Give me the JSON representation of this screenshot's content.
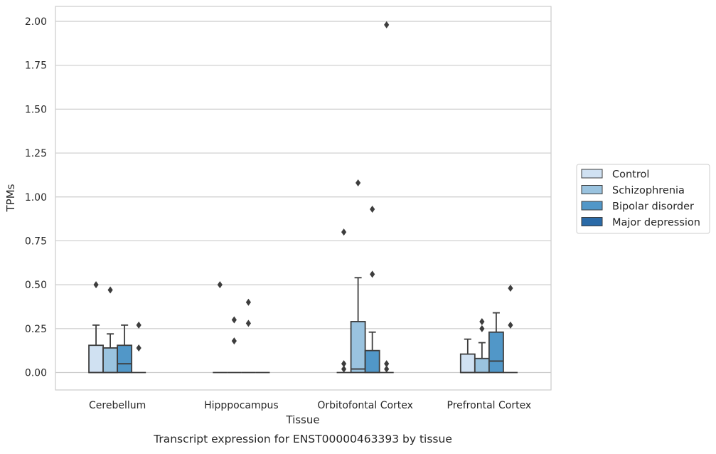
{
  "chart_data": {
    "type": "box",
    "title": "Transcript expression for ENST00000463393 by tissue",
    "xlabel": "Tissue",
    "ylabel": "TPMs",
    "ylim": [
      -0.1,
      2.08
    ],
    "yticks": [
      "0.00",
      "0.25",
      "0.50",
      "0.75",
      "1.00",
      "1.25",
      "1.50",
      "1.75",
      "2.00"
    ],
    "grid": "horizontal",
    "legend_position": "right",
    "categories": [
      "Cerebellum",
      "Hipppocampus",
      "Orbitofontal Cortex",
      "Prefrontal Cortex"
    ],
    "series": [
      {
        "name": "Control",
        "color": "#d0e1f2",
        "boxes": [
          {
            "q1": 0,
            "median": 0,
            "q3": 0.155,
            "whisker_low": 0,
            "whisker_high": 0.27,
            "outliers": [
              0.5
            ]
          },
          {
            "q1": 0,
            "median": 0,
            "q3": 0,
            "whisker_low": 0,
            "whisker_high": 0,
            "outliers": [
              0.5
            ]
          },
          {
            "q1": 0,
            "median": 0,
            "q3": 0,
            "whisker_low": 0,
            "whisker_high": 0,
            "outliers": [
              0.8,
              0.05,
              0.02
            ]
          },
          {
            "q1": 0,
            "median": 0,
            "q3": 0.105,
            "whisker_low": 0,
            "whisker_high": 0.19,
            "outliers": []
          }
        ]
      },
      {
        "name": "Schizophrenia",
        "color": "#9ac3df",
        "boxes": [
          {
            "q1": 0,
            "median": 0,
            "q3": 0.14,
            "whisker_low": 0,
            "whisker_high": 0.22,
            "outliers": [
              0.47
            ]
          },
          {
            "q1": 0,
            "median": 0,
            "q3": 0,
            "whisker_low": 0,
            "whisker_high": 0,
            "outliers": [
              0.3,
              0.18
            ]
          },
          {
            "q1": 0,
            "median": 0.02,
            "q3": 0.29,
            "whisker_low": 0,
            "whisker_high": 0.54,
            "outliers": [
              1.08
            ]
          },
          {
            "q1": 0,
            "median": 0,
            "q3": 0.08,
            "whisker_low": 0,
            "whisker_high": 0.17,
            "outliers": [
              0.29,
              0.25
            ]
          }
        ]
      },
      {
        "name": "Bipolar disorder",
        "color": "#5197c8",
        "boxes": [
          {
            "q1": 0,
            "median": 0.05,
            "q3": 0.155,
            "whisker_low": 0,
            "whisker_high": 0.27,
            "outliers": []
          },
          {
            "q1": 0,
            "median": 0,
            "q3": 0,
            "whisker_low": 0,
            "whisker_high": 0,
            "outliers": [
              0.4,
              0.28
            ]
          },
          {
            "q1": 0,
            "median": 0,
            "q3": 0.125,
            "whisker_low": 0,
            "whisker_high": 0.23,
            "outliers": [
              0.93,
              0.56
            ]
          },
          {
            "q1": 0,
            "median": 0.065,
            "q3": 0.23,
            "whisker_low": 0,
            "whisker_high": 0.34,
            "outliers": []
          }
        ]
      },
      {
        "name": "Major depression",
        "color": "#2a6aa7",
        "boxes": [
          {
            "q1": 0,
            "median": 0,
            "q3": 0,
            "whisker_low": 0,
            "whisker_high": 0,
            "outliers": [
              0.27,
              0.14
            ]
          },
          {
            "q1": 0,
            "median": 0,
            "q3": 0,
            "whisker_low": 0,
            "whisker_high": 0,
            "outliers": []
          },
          {
            "q1": 0,
            "median": 0,
            "q3": 0,
            "whisker_low": 0,
            "whisker_high": 0,
            "outliers": [
              1.98,
              0.05,
              0.02
            ]
          },
          {
            "q1": 0,
            "median": 0,
            "q3": 0,
            "whisker_low": 0,
            "whisker_high": 0,
            "outliers": [
              0.48,
              0.27
            ]
          }
        ]
      }
    ]
  }
}
